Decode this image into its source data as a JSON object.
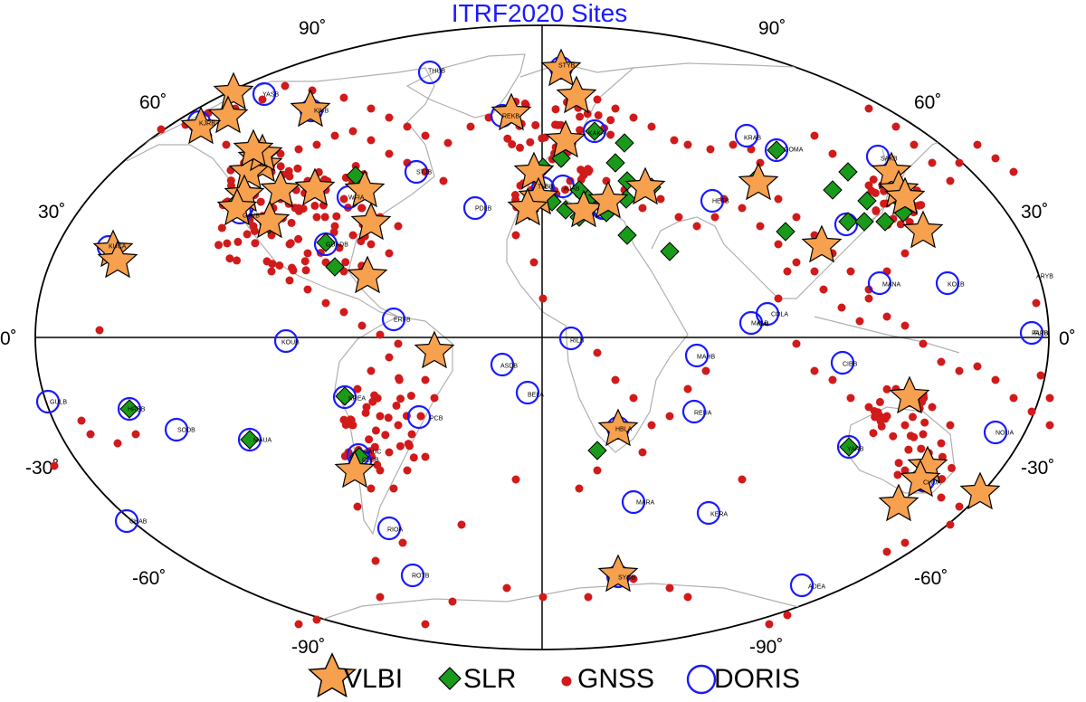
{
  "title": "ITRF2020 Sites",
  "lat_labels": {
    "n90": "90˚",
    "n60": "60˚",
    "n30": "30˚",
    "eq": "0˚",
    "s30": "-30˚",
    "s60": "-60˚",
    "s90": "-90˚"
  },
  "legend": {
    "vlbi": "VLBI",
    "slr": "SLR",
    "gnss": "GNSS",
    "doris": "DORIS"
  },
  "colors": {
    "title": "#1a1aff",
    "vlbi": "#f7a04d",
    "slr": "#1a9a1a",
    "gnss": "#d11a1a",
    "doris": "#1a1aff",
    "coast": "#b0b0b0"
  },
  "site_labels": {
    "thub": "THUB",
    "styb": "STYB",
    "rekb": "REKB",
    "kiub": "KIUB",
    "yasb": "YASB",
    "stjb": "STJB",
    "pdlb": "PDLB",
    "krab": "KRAB",
    "mai": "MAI",
    "koub": "KOUB",
    "ajab": "AJAB",
    "papb": "PAPB",
    "asdb": "ASDB",
    "bela": "BELA",
    "rilb": "RILB",
    "mahb": "MAHB",
    "reua": "REUA",
    "hbla": "HBLA",
    "mara": "MARA",
    "kera": "KERA",
    "rioa": "RIOA",
    "syob": "SYOB",
    "adea": "ADEA",
    "chab": "CHAB",
    "kolb": "KOLB",
    "mana": "MANA",
    "gulb": "GULB",
    "cola": "COLA",
    "malb": "MALB",
    "fltb": "FLTB",
    "cibb": "CIBB",
    "yarb": "YARB",
    "noua": "NOUA",
    "tlsb": "TLSB",
    "goma": "GOMA",
    "sakb": "SAKB",
    "gavb": "GAVB",
    "guadb": "GUADB",
    "sodb": "SODB",
    "maua": "MAUA",
    "rotb": "ROTB",
    "krea": "KREA",
    "pcb": "PCB",
    "hefb": "HEFB",
    "wfia": "WFIA",
    "sauc": "SAUC",
    "clcb": "CLCB",
    "chua": "CHUA",
    "hrbb": "HRBB",
    "kuca": "KUCA",
    "erfb": "ERFB",
    "aryb": "ARYB",
    "kjrb": "KJRB",
    "kaka": "KAKA"
  }
}
